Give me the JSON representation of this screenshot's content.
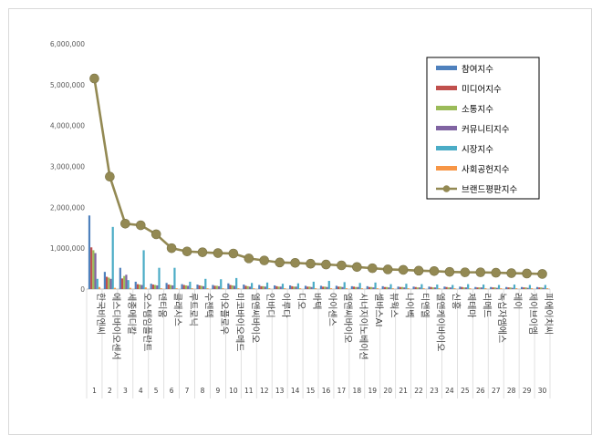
{
  "chart_data": {
    "type": "bar",
    "title": "",
    "xlabel": "",
    "ylabel": "",
    "ylim": [
      0,
      6000000
    ],
    "y_ticks": [
      "0",
      "1,000,000",
      "2,000,000",
      "3,000,000",
      "4,000,000",
      "5,000,000",
      "6,000,000"
    ],
    "grid": false,
    "legend_position": "top-right",
    "ranks": [
      "1",
      "2",
      "3",
      "4",
      "5",
      "6",
      "7",
      "8",
      "9",
      "10",
      "11",
      "12",
      "13",
      "14",
      "15",
      "16",
      "17",
      "18",
      "19",
      "20",
      "21",
      "22",
      "23",
      "24",
      "25",
      "26",
      "27",
      "28",
      "29",
      "30"
    ],
    "categories": [
      "한국비엔씨",
      "에스디바이오센서",
      "세종메디칼",
      "오스템임플란트",
      "덴티움",
      "클래시스",
      "루트로닉",
      "수젠텍",
      "이오플로우",
      "미코바이오메드",
      "엘앤씨바이오",
      "인바디",
      "이루다",
      "디오",
      "바텍",
      "아이센스",
      "엘앤씨바이오",
      "시너지이노베이션",
      "셀바스AI",
      "뷰웍스",
      "나이벡",
      "티앤엘",
      "엘앤케이바이오",
      "신흥",
      "제테마",
      "리메드",
      "녹십자엠에스",
      "레이",
      "제이브이엠",
      "피에이치씨"
    ],
    "series": [
      {
        "name": "참여지수",
        "type": "bar",
        "color": "#4f81bd",
        "values": [
          1800000,
          420000,
          520000,
          180000,
          130000,
          150000,
          120000,
          110000,
          100000,
          140000,
          110000,
          100000,
          90000,
          90000,
          80000,
          80000,
          80000,
          70000,
          70000,
          70000,
          60000,
          60000,
          60000,
          60000,
          60000,
          50000,
          50000,
          50000,
          50000,
          50000
        ]
      },
      {
        "name": "미디어지수",
        "type": "bar",
        "color": "#c0504d",
        "values": [
          1020000,
          300000,
          260000,
          120000,
          110000,
          110000,
          100000,
          90000,
          80000,
          100000,
          80000,
          70000,
          70000,
          70000,
          60000,
          60000,
          60000,
          60000,
          50000,
          50000,
          50000,
          50000,
          50000,
          50000,
          50000,
          40000,
          40000,
          40000,
          40000,
          40000
        ]
      },
      {
        "name": "소통지수",
        "type": "bar",
        "color": "#9bbb59",
        "values": [
          950000,
          280000,
          320000,
          110000,
          100000,
          100000,
          90000,
          80000,
          80000,
          90000,
          70000,
          70000,
          60000,
          60000,
          60000,
          60000,
          60000,
          50000,
          50000,
          50000,
          50000,
          40000,
          40000,
          40000,
          40000,
          40000,
          40000,
          40000,
          40000,
          40000
        ]
      },
      {
        "name": "커뮤니티지수",
        "type": "bar",
        "color": "#8064a2",
        "values": [
          880000,
          250000,
          350000,
          100000,
          90000,
          90000,
          80000,
          70000,
          70000,
          80000,
          60000,
          60000,
          60000,
          60000,
          50000,
          50000,
          50000,
          50000,
          40000,
          40000,
          40000,
          40000,
          40000,
          40000,
          40000,
          40000,
          30000,
          30000,
          30000,
          30000
        ]
      },
      {
        "name": "시장지수",
        "type": "bar",
        "color": "#4bacc6",
        "values": [
          250000,
          1520000,
          220000,
          950000,
          520000,
          520000,
          180000,
          250000,
          240000,
          270000,
          150000,
          160000,
          130000,
          140000,
          180000,
          200000,
          170000,
          150000,
          160000,
          120000,
          130000,
          120000,
          110000,
          100000,
          120000,
          110000,
          100000,
          110000,
          100000,
          100000
        ]
      },
      {
        "name": "사회공헌지수",
        "type": "bar",
        "color": "#f79646",
        "values": [
          50000,
          30000,
          30000,
          40000,
          20000,
          20000,
          20000,
          20000,
          20000,
          20000,
          20000,
          20000,
          20000,
          20000,
          20000,
          20000,
          20000,
          20000,
          20000,
          20000,
          20000,
          20000,
          20000,
          20000,
          20000,
          20000,
          20000,
          20000,
          20000,
          20000
        ]
      },
      {
        "name": "브랜드평판지수",
        "type": "line",
        "color": "#938953",
        "values": [
          5150000,
          2750000,
          1600000,
          1560000,
          1340000,
          1000000,
          920000,
          900000,
          880000,
          870000,
          750000,
          700000,
          650000,
          640000,
          620000,
          600000,
          580000,
          540000,
          510000,
          480000,
          470000,
          450000,
          440000,
          420000,
          410000,
          410000,
          400000,
          390000,
          380000,
          370000
        ]
      }
    ]
  }
}
